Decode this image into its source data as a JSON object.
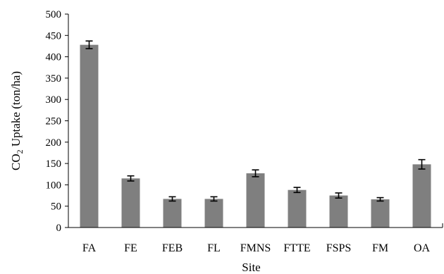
{
  "chart_data": {
    "type": "bar",
    "title": "",
    "xlabel": "Site",
    "ylabel": {
      "prefix": "CO",
      "subscript": "2",
      "suffix": " Uptake (ton/ha)"
    },
    "categories": [
      "FA",
      "FE",
      "FEB",
      "FL",
      "FMNS",
      "FTTE",
      "FSPS",
      "FM",
      "OA"
    ],
    "values": [
      428,
      115,
      67,
      67,
      127,
      88,
      75,
      66,
      148
    ],
    "errors": [
      9,
      6,
      5,
      5,
      8,
      6,
      6,
      4,
      11
    ],
    "ylim": [
      0,
      500
    ],
    "yticks": [
      0,
      50,
      100,
      150,
      200,
      250,
      300,
      350,
      400,
      450,
      500
    ],
    "grid": false,
    "legend": "none",
    "bar_color": "#7f7f7f",
    "error_color": "#000000"
  }
}
